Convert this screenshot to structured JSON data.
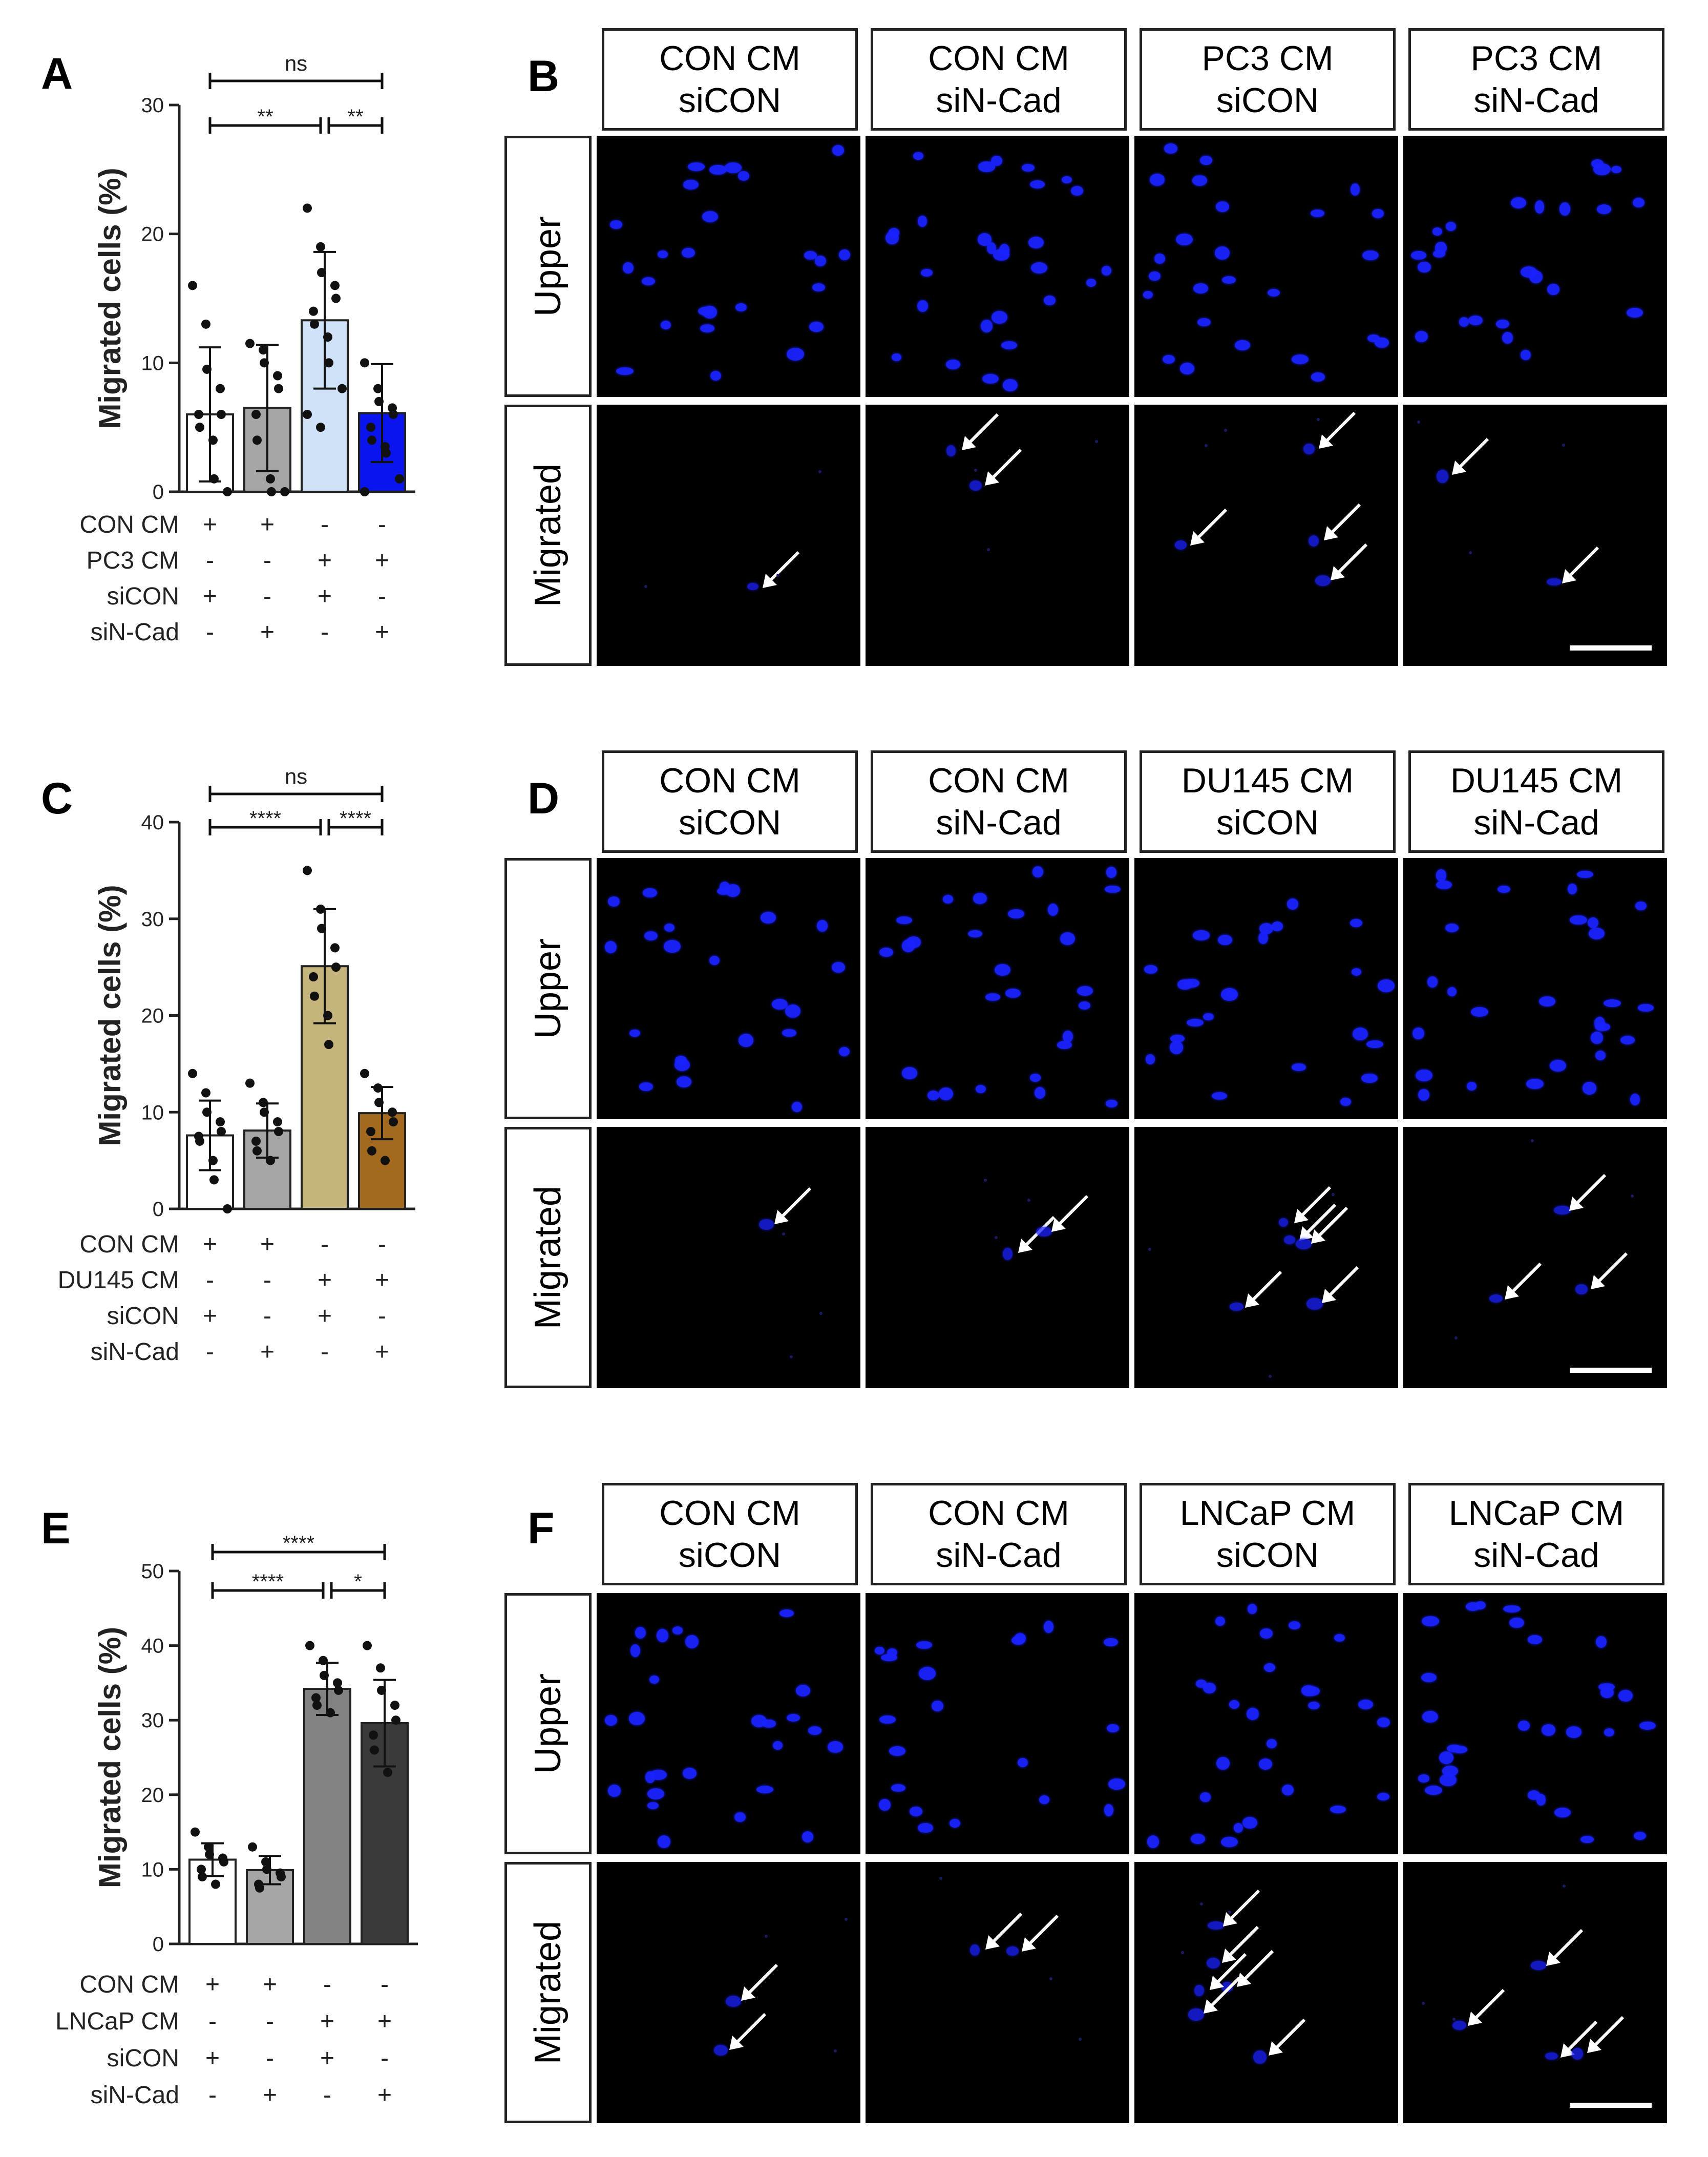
{
  "figure": {
    "panels": [
      {
        "letter": "A",
        "micro_letter": "B",
        "cell_line_cm": "PC3 CM"
      },
      {
        "letter": "C",
        "micro_letter": "D",
        "cell_line_cm": "DU145 CM"
      },
      {
        "letter": "E",
        "micro_letter": "F",
        "cell_line_cm": "LNCaP CM"
      }
    ],
    "row_labels": {
      "upper": "Upper",
      "migrated": "Migrated"
    }
  },
  "chart_data": [
    {
      "type": "bar",
      "panel": "A",
      "ylabel": "Migrated cells (%)",
      "ylim": [
        0,
        30
      ],
      "yticks": [
        0,
        10,
        20,
        30
      ],
      "categories": [
        "CON CM siCON",
        "CON CM siN-Cad",
        "PC3 CM siCON",
        "PC3 CM siN-Cad"
      ],
      "values": [
        6.0,
        6.5,
        13.3,
        6.1
      ],
      "errors": [
        5.2,
        4.9,
        5.3,
        3.8
      ],
      "colors": [
        "#ffffff",
        "#a6a6a6",
        "#cfe2f8",
        "#0a14ef"
      ],
      "points": [
        [
          16,
          13,
          9.5,
          8,
          6,
          6,
          5,
          4,
          1,
          0
        ],
        [
          11.5,
          11,
          10,
          9,
          8,
          6,
          4,
          1,
          0,
          0
        ],
        [
          22,
          19,
          17,
          16,
          15,
          14,
          13,
          12,
          10,
          8,
          6,
          5
        ],
        [
          10,
          8,
          7,
          6.5,
          6,
          5,
          4,
          3.5,
          3,
          1,
          0
        ]
      ],
      "comparisons": [
        {
          "label": "ns",
          "from": 0,
          "to": 3,
          "level": 2
        },
        {
          "label": "**",
          "from": 0,
          "to": 2,
          "level": 1
        },
        {
          "label": "**",
          "from": 2,
          "to": 3,
          "level": 1
        }
      ],
      "conditions": [
        {
          "label": "CON CM",
          "signs": [
            "+",
            "+",
            "-",
            "-"
          ]
        },
        {
          "label": "PC3 CM",
          "signs": [
            "-",
            "-",
            "+",
            "+"
          ]
        },
        {
          "label": "siCON",
          "signs": [
            "+",
            "-",
            "+",
            "-"
          ]
        },
        {
          "label": "siN-Cad",
          "signs": [
            "-",
            "+",
            "-",
            "+"
          ]
        }
      ]
    },
    {
      "type": "bar",
      "panel": "C",
      "ylabel": "Migrated cells (%)",
      "ylim": [
        0,
        40
      ],
      "yticks": [
        0,
        10,
        20,
        30,
        40
      ],
      "categories": [
        "CON CM siCON",
        "CON CM siN-Cad",
        "DU145 CM siCON",
        "DU145 CM siN-Cad"
      ],
      "values": [
        7.6,
        8.1,
        25.1,
        9.9
      ],
      "errors": [
        3.6,
        2.8,
        5.9,
        2.7
      ],
      "colors": [
        "#ffffff",
        "#a6a6a6",
        "#c5b57c",
        "#a3691f"
      ],
      "points": [
        [
          14,
          12,
          10,
          9,
          8,
          7.5,
          7,
          5,
          3,
          0
        ],
        [
          13,
          11,
          10,
          9,
          8,
          7,
          6,
          5
        ],
        [
          35,
          31,
          29,
          27,
          25,
          24,
          22,
          20,
          17
        ],
        [
          14,
          12.5,
          11,
          10,
          9,
          8,
          6,
          5
        ]
      ],
      "comparisons": [
        {
          "label": "ns",
          "from": 0,
          "to": 3,
          "level": 2
        },
        {
          "label": "****",
          "from": 0,
          "to": 2,
          "level": 1
        },
        {
          "label": "****",
          "from": 2,
          "to": 3,
          "level": 1
        }
      ],
      "conditions": [
        {
          "label": "CON CM",
          "signs": [
            "+",
            "+",
            "-",
            "-"
          ]
        },
        {
          "label": "DU145 CM",
          "signs": [
            "-",
            "-",
            "+",
            "+"
          ]
        },
        {
          "label": "siCON",
          "signs": [
            "+",
            "-",
            "+",
            "-"
          ]
        },
        {
          "label": "siN-Cad",
          "signs": [
            "-",
            "+",
            "-",
            "+"
          ]
        }
      ]
    },
    {
      "type": "bar",
      "panel": "E",
      "ylabel": "Migrated cells (%)",
      "ylim": [
        0,
        50
      ],
      "yticks": [
        0,
        10,
        20,
        30,
        40,
        50
      ],
      "categories": [
        "CON CM siCON",
        "CON CM siN-Cad",
        "LNCaP CM siCON",
        "LNCaP CM siN-Cad"
      ],
      "values": [
        11.3,
        9.9,
        34.2,
        29.6
      ],
      "errors": [
        2.2,
        1.9,
        3.5,
        5.8
      ],
      "colors": [
        "#ffffff",
        "#a6a6a6",
        "#828282",
        "#3a3a3a"
      ],
      "points": [
        [
          15,
          13,
          12,
          11.5,
          11,
          10,
          9,
          8
        ],
        [
          13,
          11,
          10,
          9.5,
          9,
          8,
          7.5
        ],
        [
          40,
          38,
          36,
          35,
          34,
          33,
          32,
          31
        ],
        [
          40,
          37,
          34,
          32,
          30,
          28,
          26,
          23
        ]
      ],
      "comparisons": [
        {
          "label": "****",
          "from": 0,
          "to": 3,
          "level": 2
        },
        {
          "label": "****",
          "from": 0,
          "to": 2,
          "level": 1
        },
        {
          "label": "*",
          "from": 2,
          "to": 3,
          "level": 1
        }
      ],
      "conditions": [
        {
          "label": "CON CM",
          "signs": [
            "+",
            "+",
            "-",
            "-"
          ]
        },
        {
          "label": "LNCaP CM",
          "signs": [
            "-",
            "-",
            "+",
            "+"
          ]
        },
        {
          "label": "siCON",
          "signs": [
            "+",
            "-",
            "+",
            "-"
          ]
        },
        {
          "label": "siN-Cad",
          "signs": [
            "-",
            "+",
            "-",
            "+"
          ]
        }
      ]
    }
  ],
  "micrographs": [
    {
      "panel": "B",
      "headers": [
        [
          "CON CM",
          "siCON"
        ],
        [
          "CON CM",
          "siN-Cad"
        ],
        [
          "PC3 CM",
          "siCON"
        ],
        [
          "PC3 CM",
          "siN-Cad"
        ]
      ],
      "migrated_arrows": [
        1,
        2,
        4,
        2
      ]
    },
    {
      "panel": "D",
      "headers": [
        [
          "CON CM",
          "siCON"
        ],
        [
          "CON CM",
          "siN-Cad"
        ],
        [
          "DU145 CM",
          "siCON"
        ],
        [
          "DU145 CM",
          "siN-Cad"
        ]
      ],
      "migrated_arrows": [
        1,
        2,
        5,
        3
      ]
    },
    {
      "panel": "F",
      "headers": [
        [
          "CON CM",
          "siCON"
        ],
        [
          "CON CM",
          "siN-Cad"
        ],
        [
          "LNCaP CM",
          "siCON"
        ],
        [
          "LNCaP CM",
          "siN-Cad"
        ]
      ],
      "migrated_arrows": [
        2,
        2,
        6,
        4
      ]
    }
  ],
  "colors": {
    "nucleus": "#1a22ff",
    "micro_bg": "#000000",
    "arrow": "#ffffff"
  }
}
